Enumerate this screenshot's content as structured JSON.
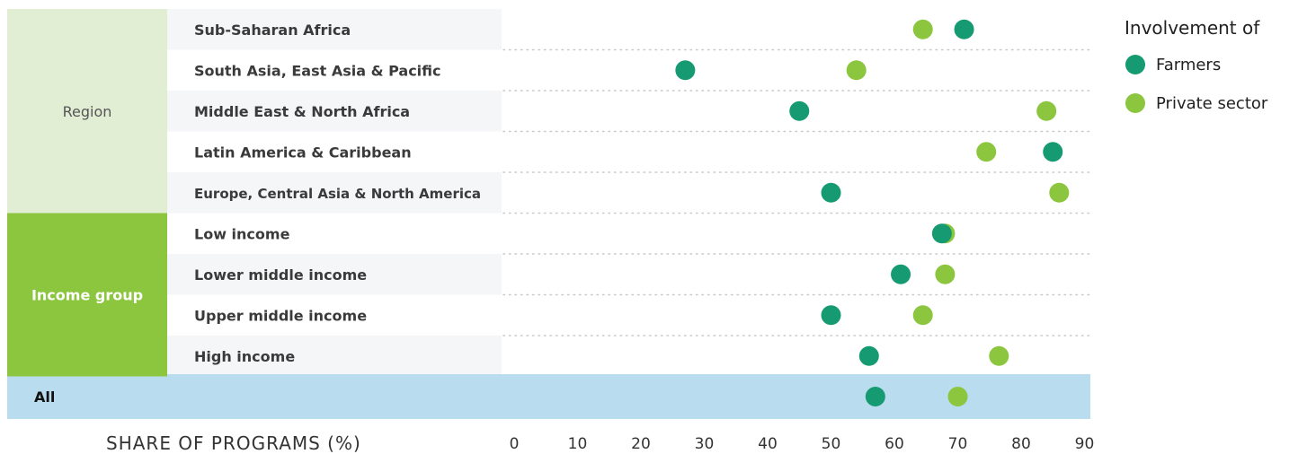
{
  "chart_data": {
    "type": "scatter",
    "xlabel": "SHARE OF PROGRAMS (%)",
    "xlim": [
      0,
      90
    ],
    "xticks": [
      0,
      10,
      20,
      30,
      40,
      50,
      60,
      70,
      80,
      90
    ],
    "legend": {
      "title": "Involvement of",
      "placement": "top-right",
      "entries": [
        "Farmers",
        "Private sector"
      ]
    },
    "colors": {
      "Farmers": "#159a72",
      "Private sector": "#8cc63f"
    },
    "groups": [
      {
        "label": "Region",
        "rows": [
          "Sub-Saharan Africa",
          "South Asia, East Asia & Pacific",
          "Middle East & North Africa",
          "Latin America & Caribbean",
          "Europe, Central Asia & North America"
        ]
      },
      {
        "label": "Income group",
        "rows": [
          "Low income",
          "Lower middle income",
          "Upper middle income",
          "High income"
        ]
      }
    ],
    "total_label": "All",
    "categories": [
      "Sub-Saharan Africa",
      "South Asia, East Asia & Pacific",
      "Middle East & North Africa",
      "Latin America & Caribbean",
      "Europe, Central Asia & North America",
      "Low income",
      "Lower middle income",
      "Upper middle income",
      "High income",
      "All"
    ],
    "series": [
      {
        "name": "Farmers",
        "values": [
          71,
          27,
          45,
          85,
          50,
          67.5,
          61,
          50,
          56,
          57
        ]
      },
      {
        "name": "Private sector",
        "values": [
          64.5,
          54,
          84,
          74.5,
          86,
          68,
          68,
          64.5,
          76.5,
          70
        ]
      }
    ]
  }
}
